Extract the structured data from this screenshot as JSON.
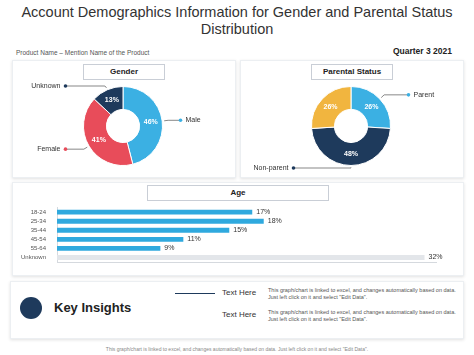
{
  "title": "Account Demographics Information for Gender and Parental Status Distribution",
  "product": "Product Name – Mention Name of the Product",
  "period": "Quarter 3 2021",
  "chart_data": [
    {
      "type": "doughnut",
      "title": "Gender",
      "categories": [
        "Male",
        "Female",
        "Unknown"
      ],
      "values": [
        46,
        41,
        13
      ],
      "value_labels": [
        "46%",
        "41%",
        "13%"
      ],
      "colors": [
        "#3bb0e3",
        "#e84c5a",
        "#1e3a5c"
      ],
      "data_labels": true
    },
    {
      "type": "doughnut",
      "title": "Parental Status",
      "categories": [
        "Parent",
        "Non-parent",
        null
      ],
      "values": [
        26,
        48,
        26
      ],
      "value_labels": [
        "26%",
        "48%",
        "26%"
      ],
      "colors": [
        "#3bb0e3",
        "#1e3a5c",
        "#f1b53f"
      ],
      "data_labels": true
    },
    {
      "type": "bar",
      "orientation": "horizontal",
      "title": "Age",
      "categories": [
        "18-24",
        "25-34",
        "35-44",
        "45-54",
        "55-64",
        "Unknown"
      ],
      "values": [
        17,
        18,
        15,
        11,
        9,
        32
      ],
      "value_labels": [
        "17%",
        "18%",
        "15%",
        "11%",
        "9%",
        "32%"
      ],
      "colors": [
        "#2fa9de",
        "#2fa9de",
        "#2fa9de",
        "#2fa9de",
        "#2fa9de",
        "#e3e6ea"
      ],
      "xlim": [
        0,
        33
      ],
      "data_labels": true,
      "tick_labels": "y"
    }
  ],
  "key_insights": {
    "title": "Key Insights",
    "items": [
      {
        "label": "Text Here",
        "text": "This graph/chart is linked to excel, and changes automatically based on data. Just left click on it and select \"Edit Data\"."
      },
      {
        "label": "Text Here",
        "text": "This graph/chart is linked to excel, and changes automatically based on data. Just left click on it and select \"Edit Data\"."
      }
    ]
  },
  "footer": "This graph/chart is linked to excel, and changes automatically based on data. Just left click on it and select \"Edit Data\"."
}
